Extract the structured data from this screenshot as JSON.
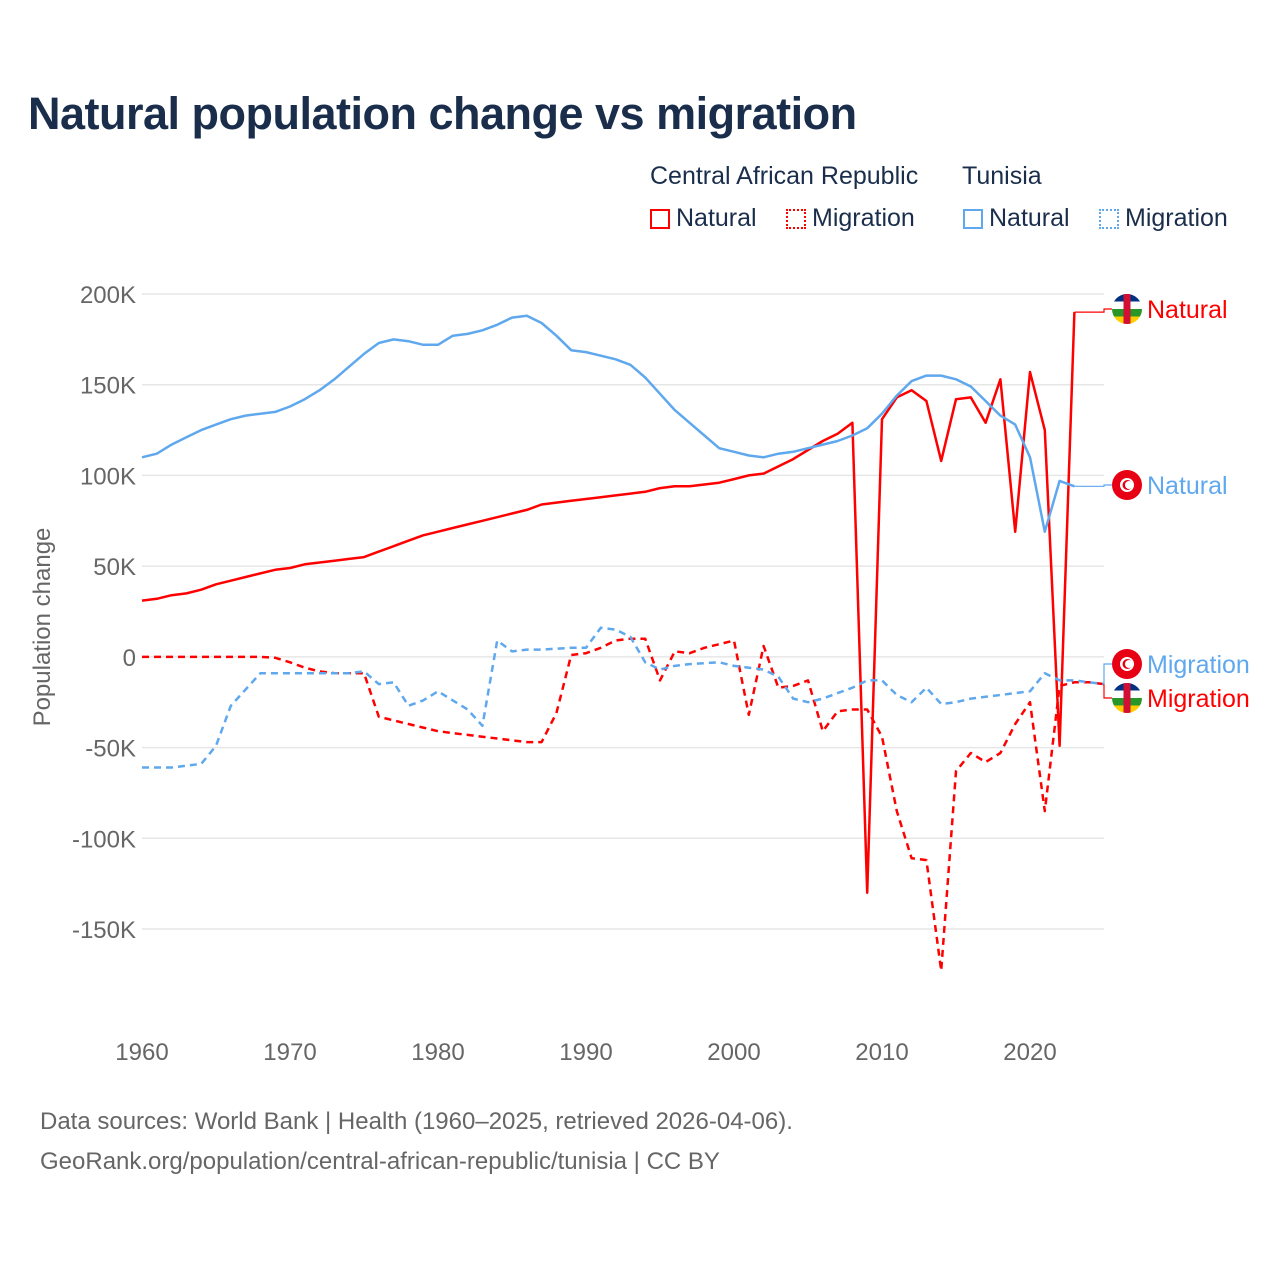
{
  "title": "Natural population change vs migration",
  "legend": {
    "groups": [
      "Central African Republic",
      "Tunisia"
    ],
    "items": [
      {
        "label": "Natural",
        "color": "#ff0000",
        "style": "solid"
      },
      {
        "label": "Migration",
        "color": "#ff0000",
        "style": "dotted"
      },
      {
        "label": "Natural",
        "color": "#5fa8ee",
        "style": "solid"
      },
      {
        "label": "Migration",
        "color": "#5fa8ee",
        "style": "dotted"
      }
    ]
  },
  "source": {
    "line1": "Data sources: World Bank | Health (1960–2025, retrieved 2026-04-06).",
    "line2": "GeoRank.org/population/central-african-republic/tunisia | CC BY"
  },
  "chart_data": {
    "type": "line",
    "title": "Natural population change vs migration",
    "xlabel": "",
    "ylabel": "Population change",
    "xlim": [
      1960,
      2025
    ],
    "ylim": [
      -150000,
      200000
    ],
    "xticks": [
      1960,
      1970,
      1980,
      1990,
      2000,
      2010,
      2020
    ],
    "xtick_labels": [
      "1960",
      "1970",
      "1980",
      "1990",
      "2000",
      "2010",
      "2020"
    ],
    "yticks": [
      200000,
      150000,
      100000,
      50000,
      0,
      -50000,
      -100000,
      -150000
    ],
    "ytick_labels": [
      "200K",
      "150K",
      "100K",
      "50K",
      "0",
      "-50K",
      "-100K",
      "-150K"
    ],
    "grid": true,
    "legend_position": "top-right",
    "start_year": 1960,
    "series": [
      {
        "name": "Central African Republic Natural",
        "end_label": "Natural",
        "flag": "car",
        "color": "#ff0000",
        "dash": "none",
        "values": [
          31,
          32,
          34,
          35,
          37,
          40,
          42,
          44,
          46,
          48,
          49,
          51,
          52,
          53,
          54,
          55,
          58,
          61,
          64,
          67,
          69,
          71,
          73,
          75,
          77,
          79,
          81,
          84,
          85,
          86,
          87,
          88,
          89,
          90,
          91,
          93,
          94,
          94,
          95,
          96,
          98,
          100,
          101,
          105,
          109,
          114,
          119,
          123,
          129,
          -130,
          131,
          143,
          147,
          141,
          108,
          142,
          143,
          129,
          153,
          69,
          157,
          125,
          -49,
          190
        ]
      },
      {
        "name": "Central African Republic Migration",
        "end_label": "Migration",
        "flag": "car",
        "color": "#ff0000",
        "dash": "7,5",
        "values": [
          0,
          0,
          0,
          0,
          0,
          0,
          0,
          0,
          0,
          -0.5,
          -3,
          -6,
          -8,
          -9,
          -9,
          -9,
          -33,
          -35,
          -37,
          -39,
          -41,
          -42,
          -43,
          -44,
          -45,
          -46,
          -47,
          -47,
          -31,
          1,
          2,
          5,
          9,
          10,
          10,
          -13,
          3,
          2,
          5,
          7,
          9,
          -32,
          6,
          -17,
          -16,
          -13,
          -41,
          -30,
          -29,
          -29,
          -44,
          -85,
          -111,
          -112,
          -173,
          -63,
          -53,
          -58,
          -53,
          -37,
          -25,
          -85,
          -16,
          -14,
          -14,
          -15
        ]
      },
      {
        "name": "Tunisia Natural",
        "end_label": "Natural",
        "flag": "tunisia",
        "color": "#5fa8ee",
        "dash": "none",
        "values": [
          110,
          112,
          117,
          121,
          125,
          128,
          131,
          133,
          134,
          135,
          138,
          142,
          147,
          153,
          160,
          167,
          173,
          175,
          174,
          172,
          172,
          177,
          178,
          180,
          183,
          187,
          188,
          184,
          177,
          169,
          168,
          166,
          164,
          161,
          154,
          145,
          136,
          129,
          122,
          115,
          113,
          111,
          110,
          112,
          113,
          115,
          117,
          119,
          122,
          126,
          134,
          144,
          152,
          155,
          155,
          153,
          149,
          141,
          133,
          128,
          110,
          69,
          97,
          94
        ]
      },
      {
        "name": "Tunisia Migration",
        "end_label": "Migration",
        "flag": "tunisia",
        "color": "#5fa8ee",
        "dash": "7,5",
        "values": [
          -61,
          -61,
          -61,
          -60,
          -59,
          -49,
          -27,
          -18,
          -9,
          -9,
          -9,
          -9,
          -9,
          -9,
          -9,
          -8,
          -15,
          -14,
          -27,
          -24,
          -19,
          -24,
          -29,
          -38,
          9,
          3,
          4,
          4,
          4.5,
          5,
          5,
          16,
          15,
          11,
          -3,
          -7,
          -5,
          -4,
          -3.5,
          -3,
          -5,
          -6,
          -7,
          -11,
          -23,
          -25,
          -23,
          -20,
          -17,
          -13,
          -13,
          -21,
          -25,
          -17,
          -26,
          -25,
          -23,
          -22,
          -21,
          -20,
          -19,
          -9,
          -13,
          -13,
          -14,
          -15
        ]
      }
    ],
    "value_units": "thousands"
  }
}
